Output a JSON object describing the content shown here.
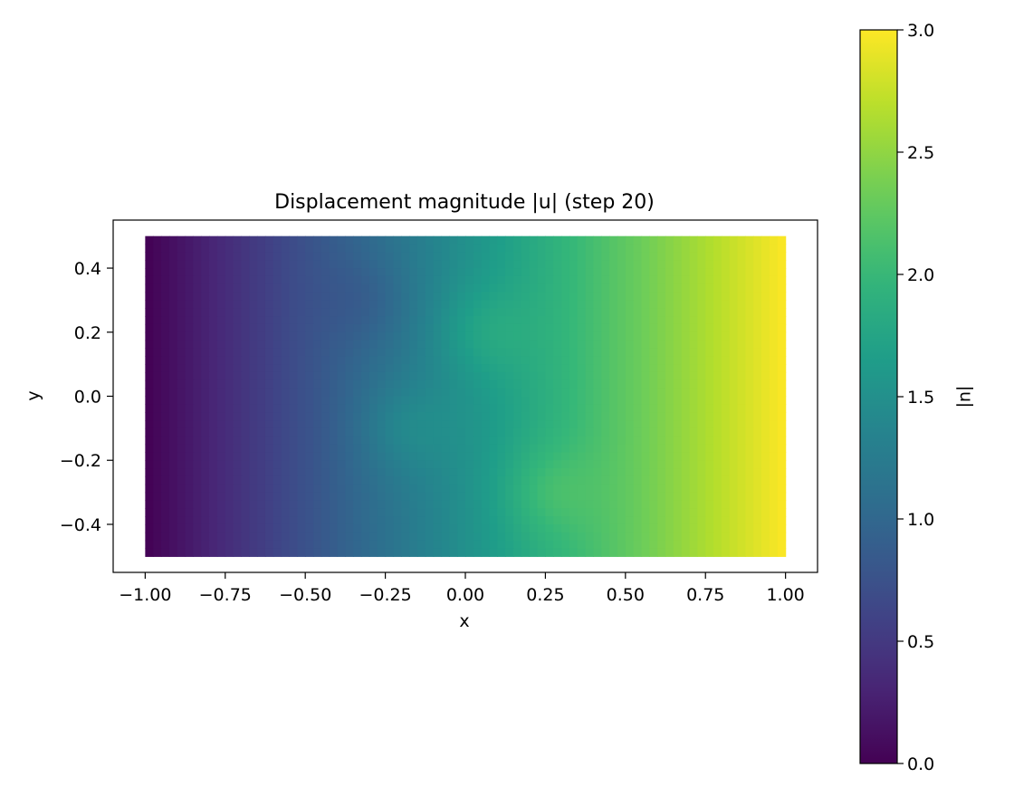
{
  "chart_data": {
    "type": "heatmap",
    "title": "Displacement magnitude |u| (step 20)",
    "xlabel": "x",
    "ylabel": "y",
    "xlim": [
      -1.1,
      1.1
    ],
    "ylim": [
      -0.55,
      0.55
    ],
    "domain": {
      "x": [
        -1.0,
        1.0
      ],
      "y": [
        -0.5,
        0.5
      ]
    },
    "xticks": [
      -1.0,
      -0.75,
      -0.5,
      -0.25,
      0.0,
      0.25,
      0.5,
      0.75,
      1.0
    ],
    "xtick_labels": [
      "−1.00",
      "−0.75",
      "−0.50",
      "−0.25",
      "0.00",
      "0.25",
      "0.50",
      "0.75",
      "1.00"
    ],
    "yticks": [
      0.4,
      0.2,
      0.0,
      -0.2,
      -0.4
    ],
    "ytick_labels": [
      "0.4",
      "0.2",
      "0.0",
      "−0.2",
      "−0.4"
    ],
    "colorbar": {
      "label": "|u|",
      "range": [
        0.0,
        3.0
      ],
      "colormap": "viridis",
      "ticks": [
        0.0,
        0.5,
        1.0,
        1.5,
        2.0,
        2.5,
        3.0
      ],
      "tick_labels": [
        "0.0",
        "0.5",
        "1.0",
        "1.5",
        "2.0",
        "2.5",
        "3.0"
      ]
    },
    "field": {
      "description": "|u| increases roughly linearly from 0 at x=-1 to 3 at x=1",
      "linear_trend": {
        "at_x_min": 0.0,
        "at_x_max": 3.0
      },
      "bumps": [
        {
          "x": -0.3,
          "y": 0.3,
          "delta": -0.15
        },
        {
          "x": 0.05,
          "y": 0.2,
          "delta": 0.2
        },
        {
          "x": -0.2,
          "y": -0.1,
          "delta": 0.2
        },
        {
          "x": 0.25,
          "y": -0.3,
          "delta": 0.2
        }
      ]
    },
    "grid": false,
    "legend": "none"
  }
}
